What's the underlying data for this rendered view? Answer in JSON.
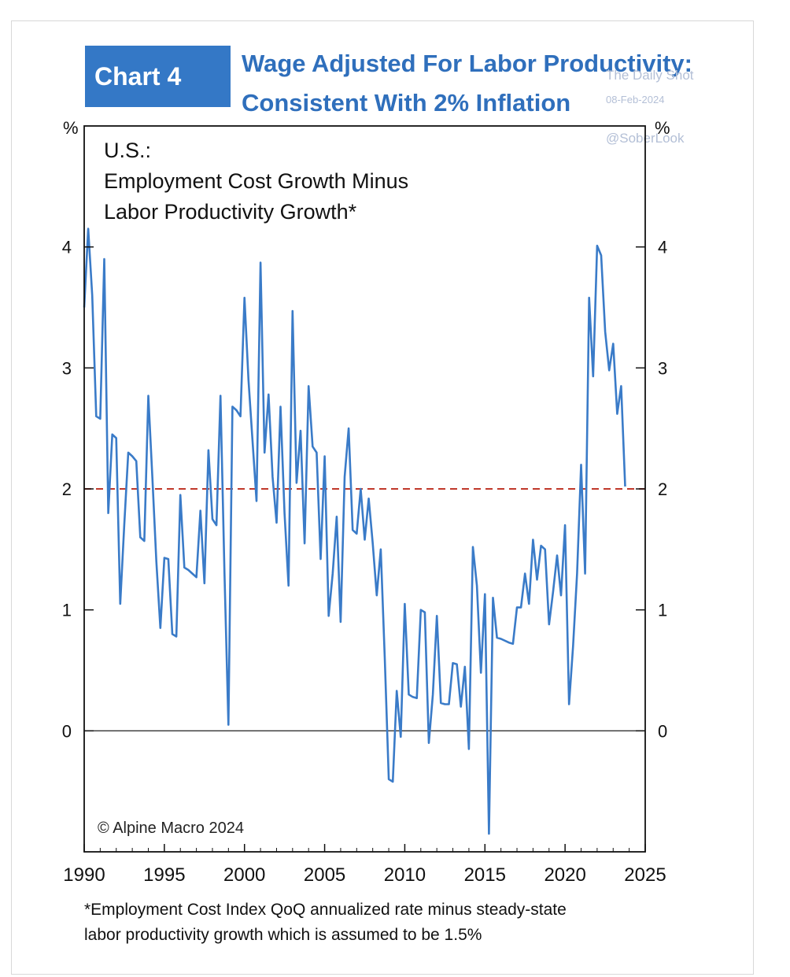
{
  "badge": "Chart 4",
  "title_lines": [
    "Wage Adjusted For Labor Productivity:",
    "Consistent With 2% Inflation"
  ],
  "watermark": {
    "source": "The Daily Shot",
    "date": "08-Feb-2024",
    "handle": "@SoberLook"
  },
  "footnote_lines": [
    "*Employment Cost Index QoQ annualized rate minus steady-state",
    "labor productivity growth which is assumed to be 1.5%"
  ],
  "chart_data": {
    "type": "line",
    "subtitle_lines": [
      "U.S.:",
      "Employment Cost Growth Minus",
      "Labor Productivity Growth*"
    ],
    "ylabel_left": "%",
    "ylabel_right": "%",
    "copyright": "© Alpine Macro 2024",
    "xlim": [
      1990,
      2025
    ],
    "ylim": [
      -1,
      5
    ],
    "x_ticks": [
      1990,
      1995,
      2000,
      2005,
      2010,
      2015,
      2020,
      2025
    ],
    "y_ticks": [
      0,
      1,
      2,
      3,
      4
    ],
    "reference_line": {
      "value": 2,
      "color": "#c0392b",
      "style": "dashed"
    },
    "zero_line": 0,
    "series": [
      {
        "color": "#3a7bc8",
        "points": [
          [
            1990.0,
            3.5
          ],
          [
            1990.25,
            4.15
          ],
          [
            1990.5,
            3.6
          ],
          [
            1990.75,
            2.6
          ],
          [
            1991.0,
            2.58
          ],
          [
            1991.25,
            3.9
          ],
          [
            1991.5,
            1.8
          ],
          [
            1991.75,
            2.45
          ],
          [
            1992.0,
            2.42
          ],
          [
            1992.25,
            1.05
          ],
          [
            1992.5,
            1.7
          ],
          [
            1992.75,
            2.3
          ],
          [
            1993.0,
            2.27
          ],
          [
            1993.25,
            2.23
          ],
          [
            1993.5,
            1.6
          ],
          [
            1993.75,
            1.57
          ],
          [
            1994.0,
            2.77
          ],
          [
            1994.25,
            2.1
          ],
          [
            1994.5,
            1.4
          ],
          [
            1994.75,
            0.85
          ],
          [
            1995.0,
            1.43
          ],
          [
            1995.25,
            1.42
          ],
          [
            1995.5,
            0.8
          ],
          [
            1995.75,
            0.78
          ],
          [
            1996.0,
            1.95
          ],
          [
            1996.25,
            1.35
          ],
          [
            1996.5,
            1.33
          ],
          [
            1996.75,
            1.3
          ],
          [
            1997.0,
            1.27
          ],
          [
            1997.25,
            1.82
          ],
          [
            1997.5,
            1.22
          ],
          [
            1997.75,
            2.32
          ],
          [
            1998.0,
            1.75
          ],
          [
            1998.25,
            1.7
          ],
          [
            1998.5,
            2.77
          ],
          [
            1998.75,
            1.3
          ],
          [
            1999.0,
            0.05
          ],
          [
            1999.25,
            2.68
          ],
          [
            1999.5,
            2.65
          ],
          [
            1999.75,
            2.6
          ],
          [
            2000.0,
            3.58
          ],
          [
            2000.25,
            2.9
          ],
          [
            2000.5,
            2.4
          ],
          [
            2000.75,
            1.9
          ],
          [
            2001.0,
            3.87
          ],
          [
            2001.25,
            2.3
          ],
          [
            2001.5,
            2.78
          ],
          [
            2001.75,
            2.1
          ],
          [
            2002.0,
            1.72
          ],
          [
            2002.25,
            2.68
          ],
          [
            2002.5,
            1.8
          ],
          [
            2002.75,
            1.2
          ],
          [
            2003.0,
            3.47
          ],
          [
            2003.25,
            2.05
          ],
          [
            2003.5,
            2.48
          ],
          [
            2003.75,
            1.55
          ],
          [
            2004.0,
            2.85
          ],
          [
            2004.25,
            2.35
          ],
          [
            2004.5,
            2.3
          ],
          [
            2004.75,
            1.42
          ],
          [
            2005.0,
            2.27
          ],
          [
            2005.25,
            0.95
          ],
          [
            2005.5,
            1.3
          ],
          [
            2005.75,
            1.77
          ],
          [
            2006.0,
            0.9
          ],
          [
            2006.25,
            2.1
          ],
          [
            2006.5,
            2.5
          ],
          [
            2006.75,
            1.66
          ],
          [
            2007.0,
            1.63
          ],
          [
            2007.25,
            2.0
          ],
          [
            2007.5,
            1.58
          ],
          [
            2007.75,
            1.92
          ],
          [
            2008.0,
            1.55
          ],
          [
            2008.25,
            1.12
          ],
          [
            2008.5,
            1.5
          ],
          [
            2008.75,
            0.6
          ],
          [
            2009.0,
            -0.4
          ],
          [
            2009.25,
            -0.42
          ],
          [
            2009.5,
            0.33
          ],
          [
            2009.75,
            -0.05
          ],
          [
            2010.0,
            1.05
          ],
          [
            2010.25,
            0.3
          ],
          [
            2010.5,
            0.28
          ],
          [
            2010.75,
            0.27
          ],
          [
            2011.0,
            1.0
          ],
          [
            2011.25,
            0.98
          ],
          [
            2011.5,
            -0.1
          ],
          [
            2011.75,
            0.3
          ],
          [
            2012.0,
            0.95
          ],
          [
            2012.25,
            0.23
          ],
          [
            2012.5,
            0.22
          ],
          [
            2012.75,
            0.22
          ],
          [
            2013.0,
            0.56
          ],
          [
            2013.25,
            0.55
          ],
          [
            2013.5,
            0.2
          ],
          [
            2013.75,
            0.53
          ],
          [
            2014.0,
            -0.15
          ],
          [
            2014.25,
            1.52
          ],
          [
            2014.5,
            1.2
          ],
          [
            2014.75,
            0.48
          ],
          [
            2015.0,
            1.13
          ],
          [
            2015.25,
            -0.85
          ],
          [
            2015.5,
            1.1
          ],
          [
            2015.75,
            0.77
          ],
          [
            2016.0,
            0.76
          ],
          [
            2016.5,
            0.73
          ],
          [
            2016.75,
            0.72
          ],
          [
            2017.0,
            1.02
          ],
          [
            2017.25,
            1.02
          ],
          [
            2017.5,
            1.3
          ],
          [
            2017.75,
            1.05
          ],
          [
            2018.0,
            1.58
          ],
          [
            2018.25,
            1.25
          ],
          [
            2018.5,
            1.53
          ],
          [
            2018.75,
            1.5
          ],
          [
            2019.0,
            0.88
          ],
          [
            2019.25,
            1.15
          ],
          [
            2019.5,
            1.45
          ],
          [
            2019.75,
            1.12
          ],
          [
            2020.0,
            1.7
          ],
          [
            2020.25,
            0.22
          ],
          [
            2020.5,
            0.7
          ],
          [
            2020.75,
            1.3
          ],
          [
            2021.0,
            2.2
          ],
          [
            2021.25,
            1.3
          ],
          [
            2021.5,
            3.58
          ],
          [
            2021.75,
            2.93
          ],
          [
            2022.0,
            4.01
          ],
          [
            2022.25,
            3.93
          ],
          [
            2022.5,
            3.3
          ],
          [
            2022.75,
            2.98
          ],
          [
            2023.0,
            3.2
          ],
          [
            2023.25,
            2.62
          ],
          [
            2023.5,
            2.85
          ],
          [
            2023.75,
            2.02
          ]
        ]
      }
    ]
  }
}
